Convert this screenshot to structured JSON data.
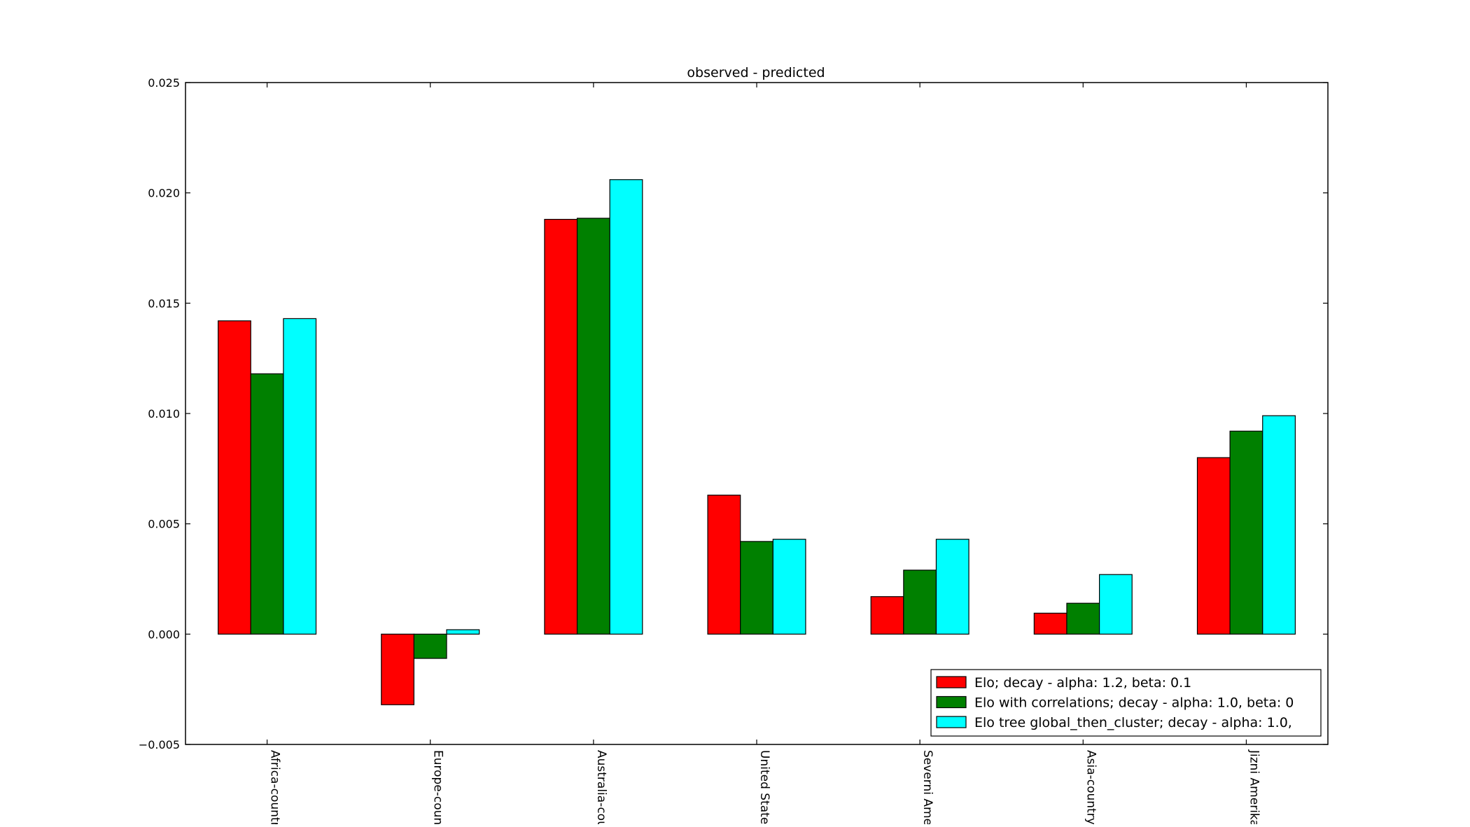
{
  "chart_data": {
    "type": "bar",
    "title": "observed - predicted",
    "xlabel": "",
    "ylabel": "",
    "ylim": [
      -0.005,
      0.025
    ],
    "yticks": [
      -0.005,
      0.0,
      0.005,
      0.01,
      0.015,
      0.02,
      0.025
    ],
    "ytick_labels": [
      "−0.005",
      "0.000",
      "0.005",
      "0.010",
      "0.015",
      "0.020",
      "0.025"
    ],
    "categories": [
      "Africa-country",
      "Europe-count",
      "Australia-cou",
      "United States",
      "Severni Amer",
      "Asia-country",
      "Jizni Amerika-"
    ],
    "series": [
      {
        "name": "Elo; decay - alpha: 1.2, beta: 0.1",
        "color": "#ff0000",
        "values": [
          0.0142,
          -0.0032,
          0.0188,
          0.0063,
          0.0017,
          0.00095,
          0.008
        ]
      },
      {
        "name": "Elo with correlations; decay - alpha: 1.0, beta: 0",
        "color": "#008000",
        "values": [
          0.0118,
          -0.0011,
          0.01885,
          0.0042,
          0.0029,
          0.0014,
          0.0092
        ]
      },
      {
        "name": "Elo tree global_then_cluster; decay - alpha: 1.0,",
        "color": "#00ffff",
        "values": [
          0.0143,
          0.0002,
          0.0206,
          0.0043,
          0.0043,
          0.0027,
          0.0099
        ]
      }
    ],
    "grid": false,
    "legend_position": "lower-right"
  }
}
